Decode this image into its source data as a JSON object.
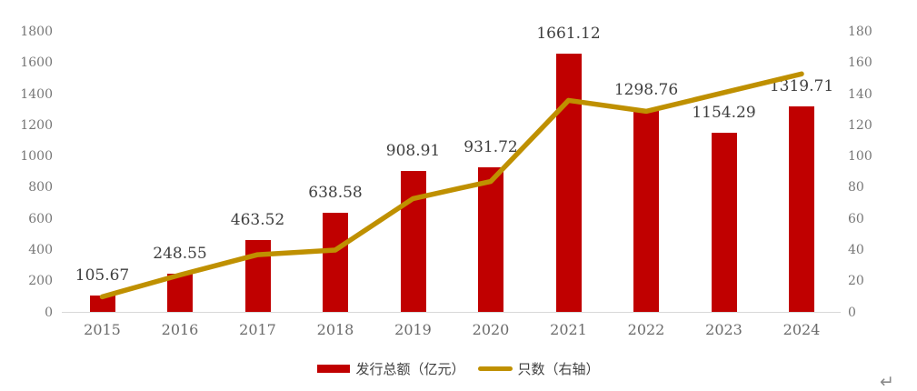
{
  "page": {
    "background": "#ffffff",
    "paragraph_mark": "↵"
  },
  "chart_data": {
    "type": "bar",
    "subtype": "combo-bar-line-dual-axis",
    "title": "",
    "categories": [
      "2015",
      "2016",
      "2017",
      "2018",
      "2019",
      "2020",
      "2021",
      "2022",
      "2023",
      "2024"
    ],
    "series": [
      {
        "name": "发行总额（亿元）",
        "chart_type": "bar",
        "axis": "left",
        "color": "#c00000",
        "values": [
          105.67,
          248.55,
          463.52,
          638.58,
          908.91,
          931.72,
          1661.12,
          1298.76,
          1154.29,
          1319.71
        ],
        "value_labels": [
          "105.67",
          "248.55",
          "463.52",
          "638.58",
          "908.91",
          "931.72",
          "1661.12",
          "1298.76",
          "1154.29",
          "1319.71"
        ]
      },
      {
        "name": "只数（右轴）",
        "chart_type": "line",
        "axis": "right",
        "color": "#bf9000",
        "values": [
          10,
          24,
          37,
          40,
          73,
          84,
          136,
          129,
          141,
          153
        ]
      }
    ],
    "left_axis": {
      "min": 0,
      "max": 1800,
      "step": 200,
      "ticks": [
        "0",
        "200",
        "400",
        "600",
        "800",
        "1000",
        "1200",
        "1400",
        "1600",
        "1800"
      ],
      "label_color": "#767676"
    },
    "right_axis": {
      "min": 0,
      "max": 180,
      "step": 20,
      "ticks": [
        "0",
        "20",
        "40",
        "60",
        "80",
        "100",
        "120",
        "140",
        "160",
        "180"
      ],
      "label_color": "#767676"
    },
    "grid": false,
    "data_labels_shown_for": "bar-series",
    "legend_position": "bottom",
    "axis_line_color": "#d9d9d9",
    "value_label_color": "#3f3f3f",
    "category_label_color": "#6b6b6b"
  }
}
